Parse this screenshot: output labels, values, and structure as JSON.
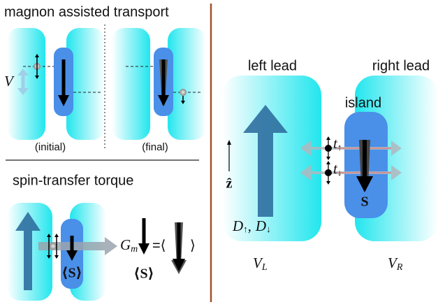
{
  "magnon_panel": {
    "title": "magnon assisted transport",
    "voltage": "V",
    "initial": "(initial)",
    "final": "(final)"
  },
  "torque_panel": {
    "title": "spin-transfer torque",
    "conductance": {
      "symbol": "G",
      "sub": "m"
    },
    "spin_label": "⟨S⟩",
    "equation": {
      "lhs": "⟨S⟩",
      "equals": "=⟨",
      "close": "⟩"
    }
  },
  "right_panel": {
    "left_lead": "left lead",
    "right_lead": "right lead",
    "island": "island",
    "axis": "ẑ",
    "dos": [
      {
        "symbol": "D",
        "sub": "↑"
      },
      {
        "symbol": "D",
        "sub": "↓"
      }
    ],
    "dos_separator": ",",
    "spin": "S",
    "tunneling": [
      {
        "symbol": "t",
        "sub": "↑"
      },
      {
        "symbol": "t",
        "sub": "↓"
      }
    ],
    "voltages": [
      {
        "symbol": "V",
        "sub": "L"
      },
      {
        "symbol": "V",
        "sub": "R"
      }
    ]
  }
}
